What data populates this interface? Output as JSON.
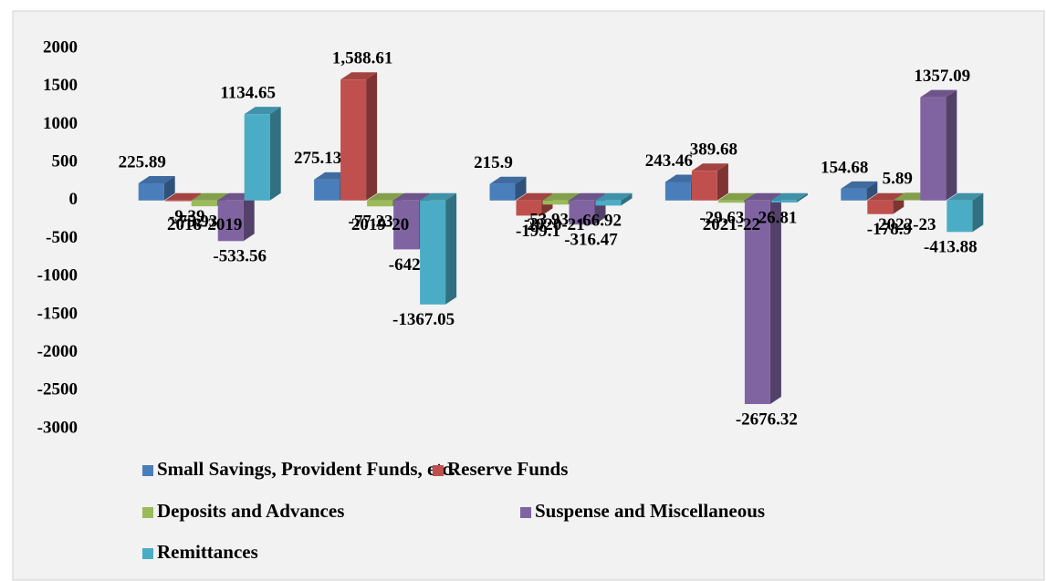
{
  "chart_data": {
    "type": "bar",
    "categories": [
      "2018-2019",
      "2019-20",
      "2020-21",
      "2021-22",
      "2022-23"
    ],
    "series": [
      {
        "name": "Small Savings, Provident Funds, etc.",
        "color": "#4a7ebb",
        "values": [
          225.89,
          275.13,
          215.9,
          243.46,
          154.68
        ]
      },
      {
        "name": "Reserve Funds",
        "color": "#c0504d",
        "values": [
          -9.39,
          1588.61,
          -199.1,
          389.68,
          -178.9
        ],
        "value_labels": [
          "-9.39",
          "1,588.61",
          "-199.1",
          "389.68",
          "-178.9"
        ]
      },
      {
        "name": "Deposits and Advances",
        "color": "#9bbb59",
        "values": [
          -75.93,
          -77.23,
          -53.93,
          -29.63,
          5.89
        ]
      },
      {
        "name": "Suspense and Miscellaneous",
        "color": "#8064a2",
        "values": [
          -533.56,
          -642.79,
          -316.47,
          -2676.32,
          1357.09
        ]
      },
      {
        "name": "Remittances",
        "color": "#4bacc6",
        "values": [
          1134.65,
          -1367.05,
          -66.92,
          -26.81,
          -413.88
        ]
      }
    ],
    "ylim": [
      -3000,
      2000
    ],
    "yticks": [
      -3000,
      -2500,
      -2000,
      -1500,
      -1000,
      -500,
      0,
      500,
      1000,
      1500,
      2000
    ]
  }
}
